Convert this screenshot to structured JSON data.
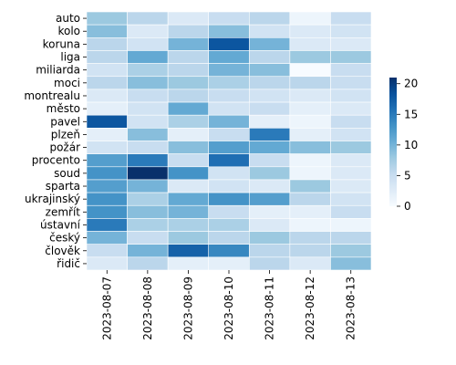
{
  "chart_data": {
    "type": "heatmap",
    "title": "",
    "xlabel": "",
    "ylabel": "",
    "x_categories": [
      "2023-08-07",
      "2023-08-08",
      "2023-08-09",
      "2023-08-10",
      "2023-08-11",
      "2023-08-12",
      "2023-08-13"
    ],
    "y_categories": [
      "auto",
      "kolo",
      "koruna",
      "liga",
      "miliarda",
      "moci",
      "montrealu",
      "město",
      "pavel",
      "plzeň",
      "požár",
      "procento",
      "soud",
      "sparta",
      "ukrajinský",
      "zemřít",
      "ústavní",
      "český",
      "člověk",
      "řidič"
    ],
    "values": [
      [
        8,
        6,
        3,
        5,
        6,
        1,
        5
      ],
      [
        9,
        3,
        6,
        9,
        4,
        3,
        4
      ],
      [
        6,
        4,
        10,
        18,
        10,
        3,
        3
      ],
      [
        6,
        11,
        6,
        11,
        6,
        8,
        8
      ],
      [
        4,
        7,
        6,
        10,
        9,
        0,
        5
      ],
      [
        6,
        9,
        8,
        7,
        6,
        6,
        5
      ],
      [
        3,
        5,
        6,
        5,
        4,
        3,
        4
      ],
      [
        2,
        4,
        11,
        4,
        5,
        2,
        3
      ],
      [
        18,
        4,
        7,
        10,
        2,
        1,
        5
      ],
      [
        2,
        9,
        2,
        5,
        15,
        2,
        4
      ],
      [
        4,
        5,
        9,
        12,
        11,
        9,
        8
      ],
      [
        12,
        15,
        5,
        16,
        5,
        1,
        3
      ],
      [
        13,
        21,
        13,
        4,
        8,
        1,
        3
      ],
      [
        12,
        10,
        3,
        4,
        3,
        8,
        3
      ],
      [
        13,
        7,
        11,
        13,
        12,
        6,
        4
      ],
      [
        13,
        9,
        10,
        5,
        2,
        2,
        5
      ],
      [
        15,
        7,
        7,
        7,
        3,
        1,
        1
      ],
      [
        10,
        5,
        8,
        6,
        8,
        6,
        6
      ],
      [
        5,
        10,
        17,
        14,
        6,
        6,
        8
      ],
      [
        3,
        6,
        2,
        2,
        6,
        3,
        9
      ]
    ],
    "vmin": 0,
    "vmax": 21,
    "colormap": "Blues",
    "colorbar_ticks": [
      0,
      5,
      10,
      15,
      20
    ],
    "grid": false,
    "cell_border_color": "#ffffff"
  }
}
